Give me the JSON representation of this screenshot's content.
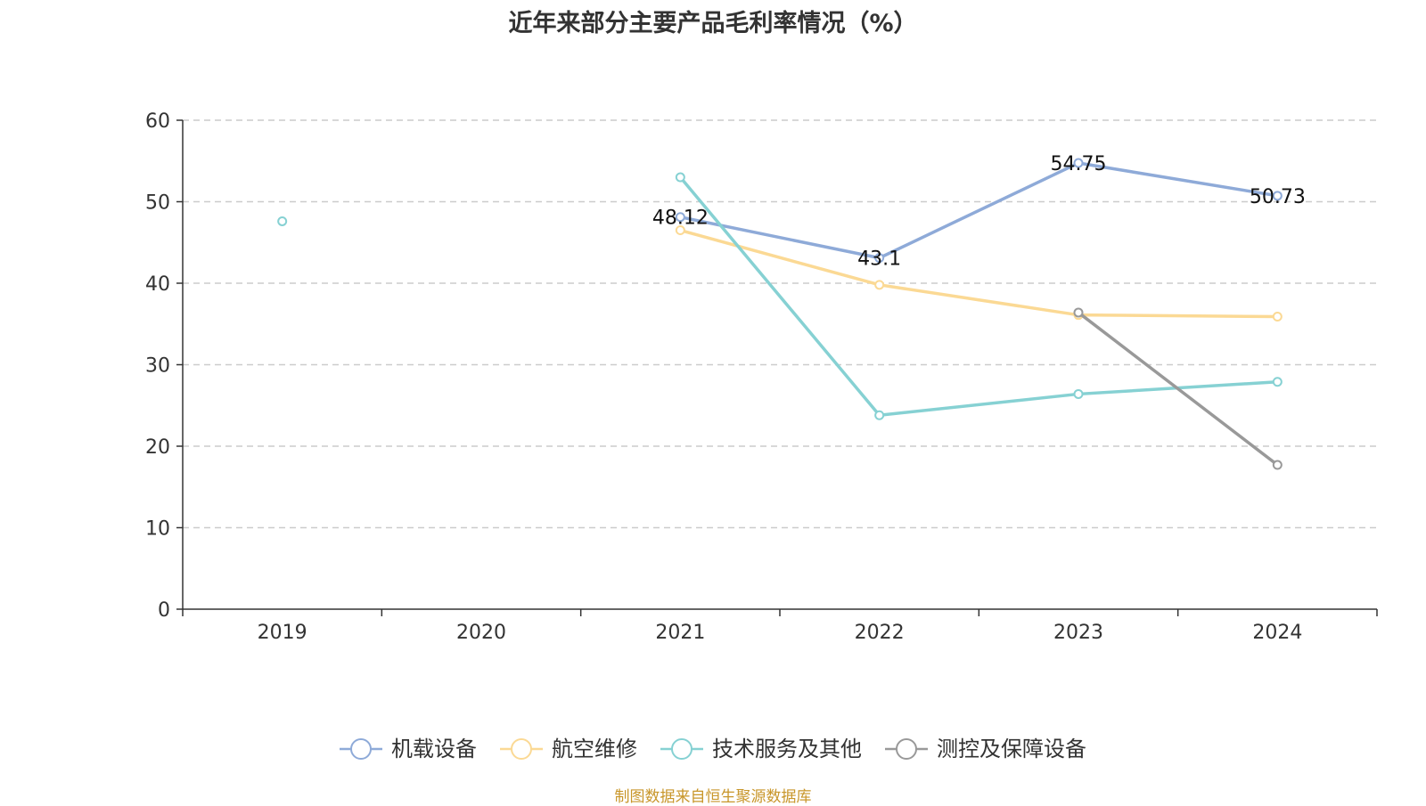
{
  "chart_data": {
    "type": "line",
    "title": "近年来部分主要产品毛利率情况（%）",
    "categories": [
      "2019",
      "2020",
      "2021",
      "2022",
      "2023",
      "2024"
    ],
    "ylim": [
      0,
      60
    ],
    "yticks": [
      "0",
      "10",
      "20",
      "30",
      "40",
      "50",
      "60"
    ],
    "grid": true,
    "legend_position": "bottom",
    "series": [
      {
        "name": "机载设备",
        "color": "#8eaad8",
        "values": [
          null,
          null,
          48.12,
          43.1,
          54.75,
          50.73
        ],
        "labels": [
          null,
          null,
          "48.12",
          "43.1",
          "54.75",
          "50.73"
        ]
      },
      {
        "name": "航空维修",
        "color": "#fbd994",
        "values": [
          null,
          null,
          46.5,
          39.8,
          36.1,
          35.9
        ],
        "labels": [
          null,
          null,
          null,
          null,
          null,
          null
        ]
      },
      {
        "name": "技术服务及其他",
        "color": "#86d1d3",
        "values": [
          47.6,
          null,
          53.0,
          23.8,
          26.4,
          27.9
        ],
        "labels": [
          null,
          null,
          null,
          null,
          null,
          null
        ]
      },
      {
        "name": "测控及保障设备",
        "color": "#999999",
        "values": [
          null,
          null,
          null,
          null,
          36.4,
          17.7
        ],
        "labels": [
          null,
          null,
          null,
          null,
          null,
          null
        ]
      }
    ]
  },
  "source": "制图数据来自恒生聚源数据库"
}
